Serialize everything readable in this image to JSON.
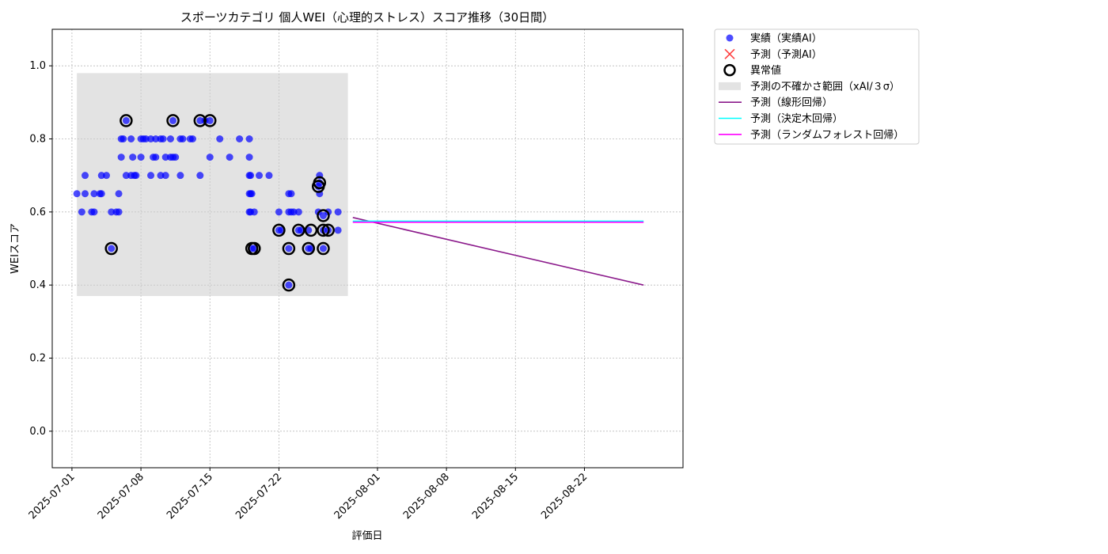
{
  "chart_data": {
    "type": "scatter",
    "title": "スポーツカテゴリ 個人WEI（心理的ストレス）スコア推移（30日間）",
    "xlabel": "評価日",
    "ylabel": "WEIスコア",
    "xlim": [
      "2025-06-29",
      "2025-09-01"
    ],
    "ylim": [
      -0.1,
      1.1
    ],
    "x_ticks": [
      "2025-07-01",
      "2025-07-08",
      "2025-07-15",
      "2025-07-22",
      "2025-08-01",
      "2025-08-08",
      "2025-08-15",
      "2025-08-22"
    ],
    "y_ticks": [
      "0.0",
      "0.2",
      "0.4",
      "0.6",
      "0.8",
      "1.0"
    ],
    "grid": true,
    "legend_position": "outside-right",
    "legend": [
      {
        "label": "実績（実績AI）",
        "marker": "circle",
        "color": "#0000ff"
      },
      {
        "label": "予測（予測AI）",
        "marker": "x",
        "color": "#ff0000"
      },
      {
        "label": "異常値",
        "marker": "ring",
        "color": "#000000"
      },
      {
        "label": "予測の不確かさ範囲（xAI/３σ）",
        "marker": "band",
        "color": "#cccccc"
      },
      {
        "label": "予測（線形回帰）",
        "marker": "line",
        "color": "#8b1a8b"
      },
      {
        "label": "予測（決定木回帰）",
        "marker": "line",
        "color": "#00ffff"
      },
      {
        "label": "予測（ランダムフォレスト回帰）",
        "marker": "line",
        "color": "#ff00ff"
      }
    ],
    "uncertainty_band": {
      "x_start": "2025-07-01T12:00",
      "x_end": "2025-07-29",
      "y_low": 0.37,
      "y_high": 0.98
    },
    "series": [
      {
        "name": "実績（実績AI）",
        "color": "#0000ff",
        "points": [
          [
            "2025-07-01T12:00",
            0.65
          ],
          [
            "2025-07-02",
            0.6
          ],
          [
            "2025-07-02T08:00",
            0.65
          ],
          [
            "2025-07-02T08:00",
            0.7
          ],
          [
            "2025-07-03",
            0.6
          ],
          [
            "2025-07-03T06:00",
            0.65
          ],
          [
            "2025-07-03T06:00",
            0.6
          ],
          [
            "2025-07-03T20:00",
            0.65
          ],
          [
            "2025-07-04",
            0.7
          ],
          [
            "2025-07-04",
            0.65
          ],
          [
            "2025-07-04T12:00",
            0.7
          ],
          [
            "2025-07-05",
            0.6
          ],
          [
            "2025-07-05",
            0.5
          ],
          [
            "2025-07-05T12:00",
            0.6
          ],
          [
            "2025-07-05T18:00",
            0.65
          ],
          [
            "2025-07-05T18:00",
            0.6
          ],
          [
            "2025-07-06",
            0.75
          ],
          [
            "2025-07-06",
            0.8
          ],
          [
            "2025-07-06T05:00",
            0.8
          ],
          [
            "2025-07-06T12:00",
            0.85
          ],
          [
            "2025-07-06T12:00",
            0.7
          ],
          [
            "2025-07-07",
            0.8
          ],
          [
            "2025-07-07",
            0.7
          ],
          [
            "2025-07-07T04:00",
            0.75
          ],
          [
            "2025-07-07T08:00",
            0.7
          ],
          [
            "2025-07-07T12:00",
            0.7
          ],
          [
            "2025-07-08",
            0.8
          ],
          [
            "2025-07-08",
            0.75
          ],
          [
            "2025-07-08T06:00",
            0.8
          ],
          [
            "2025-07-08T12:00",
            0.8
          ],
          [
            "2025-07-09",
            0.7
          ],
          [
            "2025-07-09",
            0.8
          ],
          [
            "2025-07-09T06:00",
            0.75
          ],
          [
            "2025-07-09T12:00",
            0.8
          ],
          [
            "2025-07-09T12:00",
            0.75
          ],
          [
            "2025-07-10",
            0.8
          ],
          [
            "2025-07-10",
            0.7
          ],
          [
            "2025-07-10T06:00",
            0.8
          ],
          [
            "2025-07-10T12:00",
            0.75
          ],
          [
            "2025-07-10T12:00",
            0.7
          ],
          [
            "2025-07-11",
            0.75
          ],
          [
            "2025-07-11",
            0.8
          ],
          [
            "2025-07-11T06:00",
            0.85
          ],
          [
            "2025-07-11T06:00",
            0.75
          ],
          [
            "2025-07-11T12:00",
            0.75
          ],
          [
            "2025-07-12",
            0.8
          ],
          [
            "2025-07-12",
            0.7
          ],
          [
            "2025-07-12T06:00",
            0.8
          ],
          [
            "2025-07-13",
            0.8
          ],
          [
            "2025-07-13T06:00",
            0.8
          ],
          [
            "2025-07-14",
            0.85
          ],
          [
            "2025-07-14",
            0.7
          ],
          [
            "2025-07-14T12:00",
            0.85
          ],
          [
            "2025-07-15",
            0.75
          ],
          [
            "2025-07-15",
            0.85
          ],
          [
            "2025-07-16",
            0.8
          ],
          [
            "2025-07-17",
            0.75
          ],
          [
            "2025-07-18",
            0.8
          ],
          [
            "2025-07-19",
            0.8
          ],
          [
            "2025-07-19",
            0.75
          ],
          [
            "2025-07-19",
            0.7
          ],
          [
            "2025-07-19",
            0.65
          ],
          [
            "2025-07-19",
            0.6
          ],
          [
            "2025-07-19T03:00",
            0.7
          ],
          [
            "2025-07-19T03:00",
            0.65
          ],
          [
            "2025-07-19T03:00",
            0.6
          ],
          [
            "2025-07-19T06:00",
            0.65
          ],
          [
            "2025-07-19T06:00",
            0.5
          ],
          [
            "2025-07-19T12:00",
            0.6
          ],
          [
            "2025-07-19T12:00",
            0.5
          ],
          [
            "2025-07-20",
            0.7
          ],
          [
            "2025-07-21",
            0.7
          ],
          [
            "2025-07-22",
            0.55
          ],
          [
            "2025-07-22",
            0.6
          ],
          [
            "2025-07-22T06:00",
            0.55
          ],
          [
            "2025-07-23",
            0.6
          ],
          [
            "2025-07-23",
            0.65
          ],
          [
            "2025-07-23",
            0.5
          ],
          [
            "2025-07-23",
            0.4
          ],
          [
            "2025-07-23T06:00",
            0.65
          ],
          [
            "2025-07-23T06:00",
            0.6
          ],
          [
            "2025-07-23T12:00",
            0.6
          ],
          [
            "2025-07-24",
            0.55
          ],
          [
            "2025-07-24",
            0.6
          ],
          [
            "2025-07-24T06:00",
            0.55
          ],
          [
            "2025-07-25",
            0.5
          ],
          [
            "2025-07-25",
            0.55
          ],
          [
            "2025-07-25T06:00",
            0.5
          ],
          [
            "2025-07-26",
            0.6
          ],
          [
            "2025-07-26",
            0.67
          ],
          [
            "2025-07-26T03:00",
            0.7
          ],
          [
            "2025-07-26T03:00",
            0.68
          ],
          [
            "2025-07-26T03:00",
            0.65
          ],
          [
            "2025-07-26T12:00",
            0.55
          ],
          [
            "2025-07-26T12:00",
            0.5
          ],
          [
            "2025-07-26T12:00",
            0.59
          ],
          [
            "2025-07-27",
            0.6
          ],
          [
            "2025-07-27",
            0.55
          ],
          [
            "2025-07-28",
            0.55
          ],
          [
            "2025-07-28",
            0.6
          ]
        ]
      },
      {
        "name": "異常値",
        "color": "#000000",
        "points": [
          [
            "2025-07-05",
            0.5
          ],
          [
            "2025-07-06T12:00",
            0.85
          ],
          [
            "2025-07-11T06:00",
            0.85
          ],
          [
            "2025-07-14",
            0.85
          ],
          [
            "2025-07-15",
            0.85
          ],
          [
            "2025-07-19T06:00",
            0.5
          ],
          [
            "2025-07-19T12:00",
            0.5
          ],
          [
            "2025-07-22",
            0.55
          ],
          [
            "2025-07-23",
            0.5
          ],
          [
            "2025-07-23",
            0.4
          ],
          [
            "2025-07-24",
            0.55
          ],
          [
            "2025-07-25",
            0.5
          ],
          [
            "2025-07-25T06:00",
            0.55
          ],
          [
            "2025-07-26",
            0.67
          ],
          [
            "2025-07-26T03:00",
            0.68
          ],
          [
            "2025-07-26T12:00",
            0.55
          ],
          [
            "2025-07-26T12:00",
            0.5
          ],
          [
            "2025-07-26T12:00",
            0.59
          ],
          [
            "2025-07-27",
            0.55
          ]
        ]
      },
      {
        "name": "予測（線形回帰）",
        "color": "#8b1a8b",
        "points": [
          [
            "2025-07-29T12:00",
            0.585
          ],
          [
            "2025-08-28",
            0.4
          ]
        ]
      },
      {
        "name": "予測（決定木回帰）",
        "color": "#00ffff",
        "points": [
          [
            "2025-07-29T12:00",
            0.575
          ],
          [
            "2025-08-28",
            0.575
          ]
        ]
      },
      {
        "name": "予測（ランダムフォレスト回帰）",
        "color": "#ff00ff",
        "points": [
          [
            "2025-07-29T12:00",
            0.572
          ],
          [
            "2025-08-28",
            0.572
          ]
        ]
      }
    ]
  }
}
